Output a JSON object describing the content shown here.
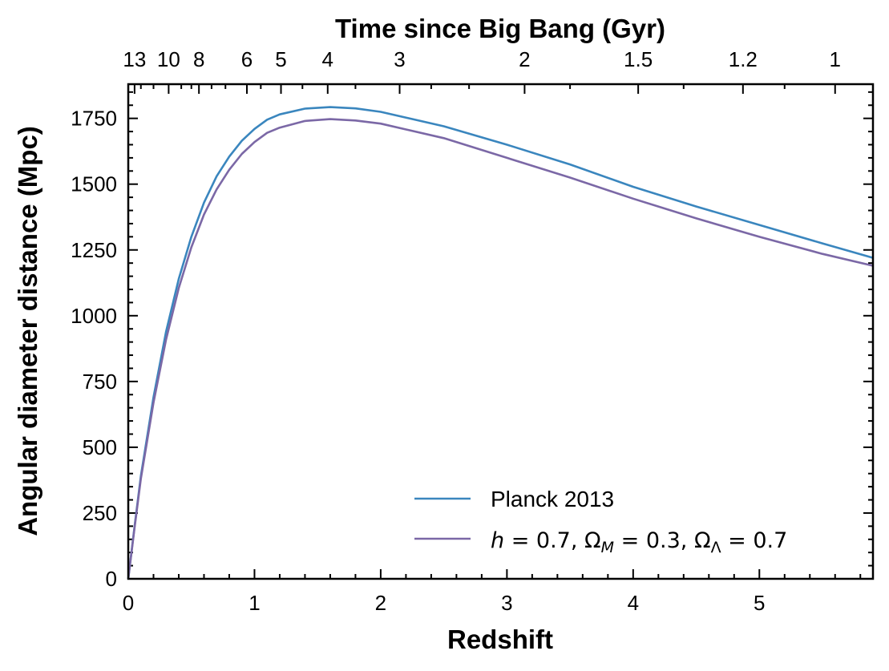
{
  "chart_data": {
    "type": "line",
    "xlabel": "Redshift",
    "ylabel": "Angular diameter distance (Mpc)",
    "top_xlabel": "Time since Big Bang (Gyr)",
    "xlim": [
      0,
      5.9
    ],
    "ylim": [
      0,
      1880
    ],
    "x_ticks": [
      0,
      1,
      2,
      3,
      4,
      5
    ],
    "x_tick_labels": [
      "0",
      "1",
      "2",
      "3",
      "4",
      "5"
    ],
    "y_ticks": [
      0,
      250,
      500,
      750,
      1000,
      1250,
      1500,
      1750
    ],
    "y_tick_labels": [
      "0",
      "250",
      "500",
      "750",
      "1000",
      "1250",
      "1500",
      "1750"
    ],
    "top_ticks": [
      {
        "label": "13",
        "z": 0.05
      },
      {
        "label": "10",
        "z": 0.32
      },
      {
        "label": "8",
        "z": 0.56
      },
      {
        "label": "6",
        "z": 0.94
      },
      {
        "label": "5",
        "z": 1.21
      },
      {
        "label": "4",
        "z": 1.58
      },
      {
        "label": "3",
        "z": 2.15
      },
      {
        "label": "2",
        "z": 3.14
      },
      {
        "label": "1.5",
        "z": 4.04
      },
      {
        "label": "1.2",
        "z": 4.87
      },
      {
        "label": "1",
        "z": 5.6
      }
    ],
    "grid": false,
    "legend": "lower-right",
    "series": [
      {
        "name": "Planck 2013",
        "color": "#3a86be",
        "x": [
          0,
          0.05,
          0.1,
          0.2,
          0.3,
          0.4,
          0.5,
          0.6,
          0.7,
          0.8,
          0.9,
          1.0,
          1.1,
          1.2,
          1.4,
          1.6,
          1.8,
          2.0,
          2.5,
          3.0,
          3.5,
          4.0,
          4.5,
          5.0,
          5.5,
          5.9
        ],
        "y": [
          0,
          200,
          390,
          690,
          940,
          1140,
          1300,
          1430,
          1530,
          1605,
          1665,
          1710,
          1745,
          1765,
          1787,
          1793,
          1788,
          1775,
          1720,
          1650,
          1575,
          1490,
          1415,
          1345,
          1275,
          1220
        ]
      },
      {
        "name": "h = 0.7,  Ω_M = 0.3,  Ω_Λ = 0.7",
        "color": "#7b68a6",
        "x": [
          0,
          0.05,
          0.1,
          0.2,
          0.3,
          0.4,
          0.5,
          0.6,
          0.7,
          0.8,
          0.9,
          1.0,
          1.1,
          1.2,
          1.4,
          1.6,
          1.8,
          2.0,
          2.5,
          3.0,
          3.5,
          4.0,
          4.5,
          5.0,
          5.5,
          5.9
        ],
        "y": [
          0,
          195,
          380,
          670,
          910,
          1105,
          1260,
          1385,
          1480,
          1555,
          1615,
          1660,
          1695,
          1715,
          1740,
          1747,
          1742,
          1730,
          1675,
          1600,
          1525,
          1445,
          1370,
          1300,
          1235,
          1190
        ]
      }
    ]
  }
}
